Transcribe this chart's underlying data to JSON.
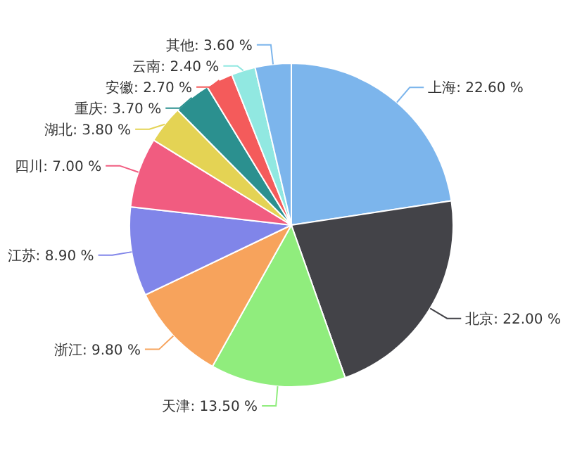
{
  "chart_data": {
    "type": "pie",
    "categories": [
      "上海",
      "北京",
      "天津",
      "浙江",
      "江苏",
      "四川",
      "湖北",
      "重庆",
      "安徽",
      "云南",
      "其他"
    ],
    "values": [
      22.6,
      22.0,
      13.5,
      9.8,
      8.9,
      7.0,
      3.8,
      3.7,
      2.7,
      2.4,
      3.6
    ],
    "colors": [
      "#7cb5ec",
      "#434348",
      "#90ed7d",
      "#f7a35c",
      "#8085e9",
      "#f15c80",
      "#e4d354",
      "#2b908f",
      "#f45b5b",
      "#91e8e1",
      "#7cb5ec"
    ],
    "value_labels": [
      "22.60 %",
      "22.00 %",
      "13.50 %",
      "9.80 %",
      "8.90 %",
      "7.00 %",
      "3.80 %",
      "3.70 %",
      "2.70 %",
      "2.40 %",
      "3.60 %"
    ]
  }
}
